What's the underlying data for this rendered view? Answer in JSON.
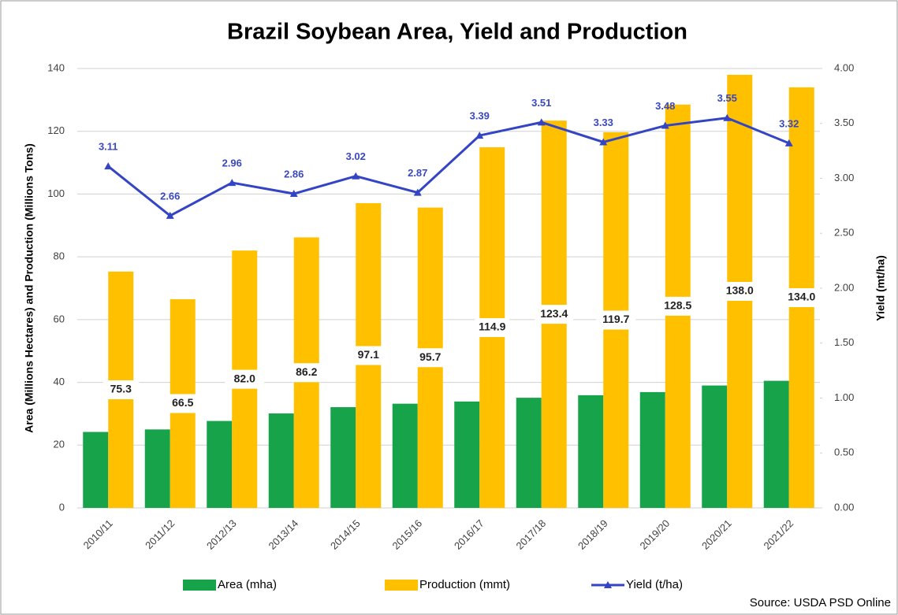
{
  "chart_data": {
    "type": "bar",
    "title": "Brazil Soybean Area, Yield and Production",
    "ylabel": "Area (Millions Hectares) and Production (Millions Tons)",
    "y2label": "Yield (mt/ha)",
    "source": "Source: USDA PSD Online",
    "categories": [
      "2010/11",
      "2011/12",
      "2012/13",
      "2013/14",
      "2014/15",
      "2015/16",
      "2016/17",
      "2017/18",
      "2018/19",
      "2019/20",
      "2020/21",
      "2021/22"
    ],
    "series": [
      {
        "name": "Area (mha)",
        "color": "#17a34a",
        "values": [
          24.2,
          25.0,
          27.7,
          30.1,
          32.1,
          33.2,
          33.9,
          35.1,
          35.9,
          36.9,
          39.0,
          40.5
        ]
      },
      {
        "name": "Production (mmt)",
        "color": "#ffc000",
        "values": [
          75.3,
          66.5,
          82.0,
          86.2,
          97.1,
          95.7,
          114.9,
          123.4,
          119.7,
          128.5,
          138.0,
          134.0
        ],
        "value_labels": [
          "75.3",
          "66.5",
          "82.0",
          "86.2",
          "97.1",
          "95.7",
          "114.9",
          "123.4",
          "119.7",
          "128.5",
          "138.0",
          "134.0"
        ]
      },
      {
        "name": "Yield (t/ha)",
        "color": "#3344c4",
        "type": "line",
        "axis": "y2",
        "values": [
          3.11,
          2.66,
          2.96,
          2.86,
          3.02,
          2.87,
          3.39,
          3.51,
          3.33,
          3.48,
          3.55,
          3.32
        ]
      }
    ],
    "ylim": [
      0,
      140
    ],
    "yticks": [
      0,
      20,
      40,
      60,
      80,
      100,
      120,
      140
    ],
    "y2lim": [
      0,
      4
    ],
    "y2ticks": [
      {
        "value": 0,
        "label": "0.00"
      },
      {
        "value": 0.5,
        "label": "0.50"
      },
      {
        "value": 1,
        "label": "1.00"
      },
      {
        "value": 1.5,
        "label": "1.50"
      },
      {
        "value": 2,
        "label": "2.00"
      },
      {
        "value": 2.5,
        "label": "2.50"
      },
      {
        "value": 3,
        "label": "3.00"
      },
      {
        "value": 3.5,
        "label": "3.50"
      },
      {
        "value": 4,
        "label": "4.00"
      }
    ],
    "grid": true
  }
}
